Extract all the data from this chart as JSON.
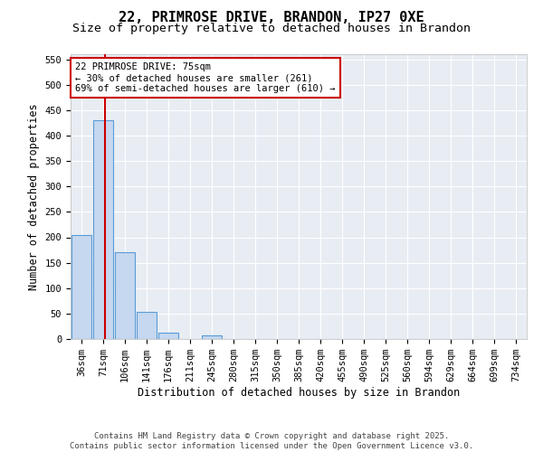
{
  "title1": "22, PRIMROSE DRIVE, BRANDON, IP27 0XE",
  "title2": "Size of property relative to detached houses in Brandon",
  "xlabel": "Distribution of detached houses by size in Brandon",
  "ylabel": "Number of detached properties",
  "bin_labels": [
    "36sqm",
    "71sqm",
    "106sqm",
    "141sqm",
    "176sqm",
    "211sqm",
    "245sqm",
    "280sqm",
    "315sqm",
    "350sqm",
    "385sqm",
    "420sqm",
    "455sqm",
    "490sqm",
    "525sqm",
    "560sqm",
    "594sqm",
    "629sqm",
    "664sqm",
    "699sqm",
    "734sqm"
  ],
  "bar_values": [
    205,
    430,
    170,
    53,
    12,
    0,
    8,
    0,
    0,
    0,
    0,
    0,
    0,
    0,
    0,
    0,
    0,
    0,
    0,
    0,
    0
  ],
  "bar_color": "#c5d8f0",
  "bar_edge_color": "#5b9bd5",
  "property_line_x": 1.1,
  "property_line_color": "#cc0000",
  "annotation_text": "22 PRIMROSE DRIVE: 75sqm\n← 30% of detached houses are smaller (261)\n69% of semi-detached houses are larger (610) →",
  "annotation_box_color": "#cc0000",
  "ylim": [
    0,
    560
  ],
  "yticks": [
    0,
    50,
    100,
    150,
    200,
    250,
    300,
    350,
    400,
    450,
    500,
    550
  ],
  "bg_color": "#e8edf4",
  "footer_text": "Contains HM Land Registry data © Crown copyright and database right 2025.\nContains public sector information licensed under the Open Government Licence v3.0.",
  "title1_fontsize": 11,
  "title2_fontsize": 9.5,
  "axis_label_fontsize": 8.5,
  "tick_fontsize": 7.5,
  "annotation_fontsize": 7.5,
  "footer_fontsize": 6.5
}
